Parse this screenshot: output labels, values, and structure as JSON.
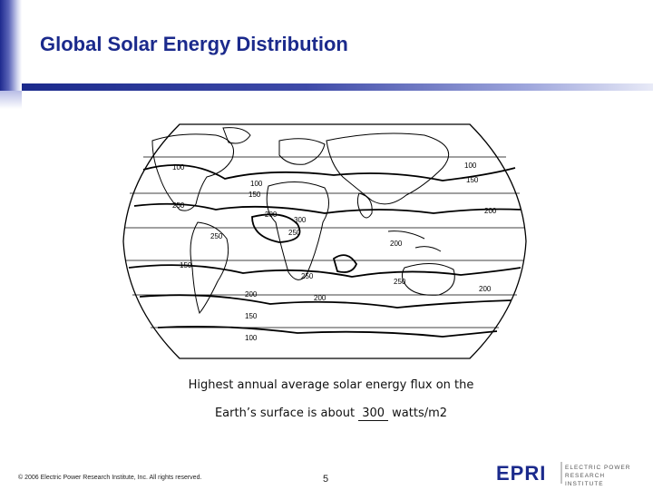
{
  "slide": {
    "title": "Global Solar Energy Distribution",
    "caption_line1": "Highest annual average solar energy flux on the",
    "caption_line2_before": "Earth’s  surface is about ",
    "caption_line2_value": "300",
    "caption_line2_after": " watts/m2",
    "footer": "© 2006 Electric Power Research Institute, Inc. All rights reserved.",
    "page_number": "5",
    "logo_wordmark": "EPRI",
    "logo_text_line1": "ELECTRIC POWER",
    "logo_text_line2": "RESEARCH INSTITUTE"
  },
  "map": {
    "contour_labels": [
      "100",
      "100",
      "150",
      "100",
      "150",
      "250",
      "200",
      "300",
      "250",
      "200",
      "200",
      "250",
      "150",
      "250",
      "200",
      "250",
      "200",
      "200",
      "150",
      "100"
    ]
  },
  "colors": {
    "title": "#1b2a8c",
    "accent_bar": "#1e2a8e"
  }
}
